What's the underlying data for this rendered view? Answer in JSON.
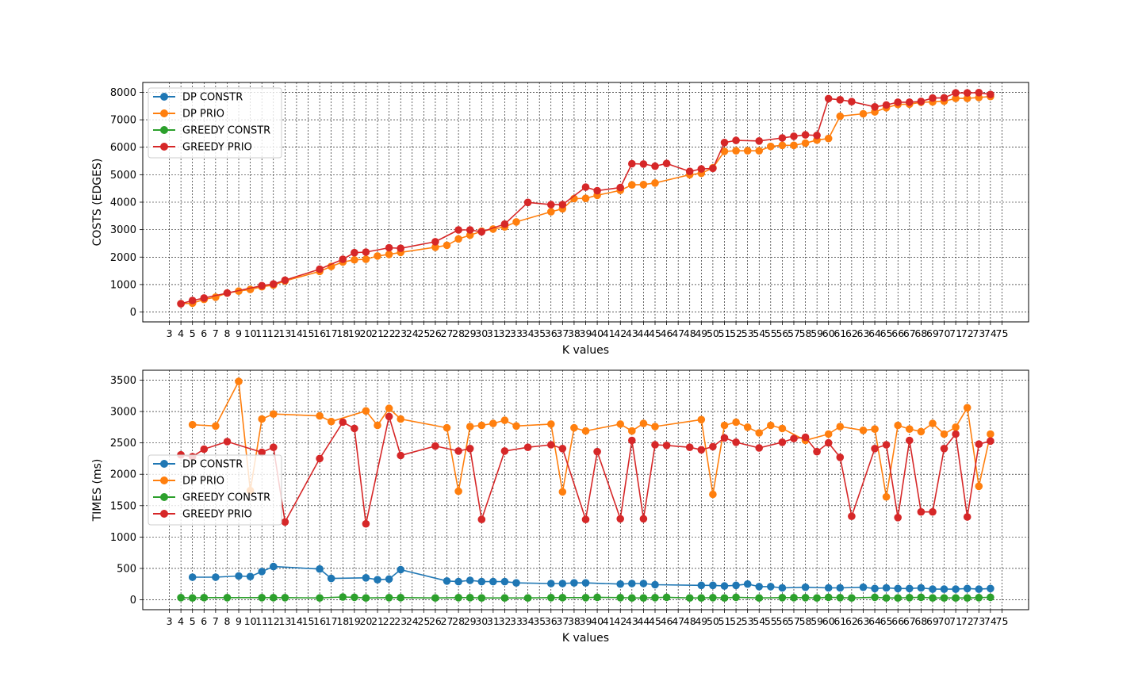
{
  "chart_data": [
    {
      "type": "line",
      "xlabel": "K values",
      "ylabel": "COSTS (EDGES)",
      "xlim": [
        3,
        75
      ],
      "ylim": [
        0,
        8000
      ],
      "grid": true,
      "legend_placement": "top-left",
      "x_ticks": [
        3,
        4,
        5,
        6,
        7,
        8,
        9,
        10,
        11,
        12,
        13,
        14,
        15,
        16,
        17,
        18,
        19,
        20,
        21,
        22,
        23,
        24,
        25,
        26,
        27,
        28,
        29,
        30,
        31,
        32,
        33,
        34,
        35,
        36,
        37,
        38,
        39,
        40,
        41,
        42,
        43,
        44,
        45,
        46,
        47,
        48,
        49,
        50,
        51,
        52,
        53,
        54,
        55,
        56,
        57,
        58,
        59,
        60,
        61,
        62,
        63,
        64,
        65,
        66,
        67,
        68,
        69,
        70,
        71,
        72,
        73,
        74,
        75
      ],
      "y_ticks": [
        0,
        1000,
        2000,
        3000,
        4000,
        5000,
        6000,
        7000,
        8000
      ],
      "series": [
        {
          "name": "DP CONSTR",
          "color": "#1f77b4",
          "x": [],
          "values": []
        },
        {
          "name": "DP PRIO",
          "color": "#ff7f0e",
          "x": [
            4,
            5,
            6,
            7,
            8,
            9,
            10,
            11,
            12,
            13,
            16,
            17,
            18,
            19,
            20,
            21,
            22,
            23,
            26,
            27,
            28,
            29,
            30,
            31,
            32,
            33,
            36,
            37,
            38,
            39,
            40,
            42,
            43,
            44,
            45,
            48,
            49,
            50,
            51,
            52,
            53,
            54,
            55,
            56,
            57,
            58,
            59,
            60,
            61,
            63,
            64,
            65,
            66,
            67,
            68,
            69,
            70,
            71,
            72,
            73,
            74
          ],
          "values": [
            300,
            320,
            460,
            540,
            690,
            760,
            820,
            920,
            980,
            1130,
            1480,
            1660,
            1820,
            1900,
            1920,
            2040,
            2100,
            2170,
            2360,
            2430,
            2660,
            2800,
            2940,
            3020,
            3100,
            3280,
            3650,
            3760,
            4130,
            4140,
            4250,
            4430,
            4630,
            4640,
            4700,
            5000,
            5050,
            5250,
            5850,
            5870,
            5870,
            5870,
            6030,
            6070,
            6070,
            6150,
            6260,
            6320,
            7130,
            7220,
            7290,
            7440,
            7560,
            7570,
            7640,
            7650,
            7680,
            7780,
            7780,
            7810,
            7850
          ]
        },
        {
          "name": "GREEDY CONSTR",
          "color": "#2ca02c",
          "x": [],
          "values": []
        },
        {
          "name": "GREEDY PRIO",
          "color": "#d62728",
          "x": [
            4,
            5,
            6,
            8,
            11,
            12,
            13,
            16,
            18,
            19,
            20,
            22,
            23,
            26,
            28,
            29,
            30,
            32,
            34,
            36,
            37,
            39,
            40,
            42,
            43,
            44,
            45,
            46,
            48,
            49,
            50,
            51,
            52,
            54,
            56,
            57,
            58,
            59,
            60,
            61,
            62,
            64,
            65,
            66,
            67,
            68,
            69,
            70,
            71,
            72,
            73,
            74
          ],
          "values": [
            300,
            420,
            510,
            690,
            960,
            1020,
            1160,
            1560,
            1920,
            2160,
            2180,
            2340,
            2320,
            2560,
            2990,
            2990,
            2920,
            3200,
            3990,
            3910,
            3910,
            4550,
            4420,
            4530,
            5400,
            5390,
            5310,
            5410,
            5120,
            5210,
            5230,
            6170,
            6250,
            6230,
            6340,
            6400,
            6450,
            6430,
            7770,
            7730,
            7660,
            7470,
            7540,
            7640,
            7640,
            7670,
            7790,
            7800,
            7980,
            7980,
            7990,
            7920
          ]
        }
      ]
    },
    {
      "type": "line",
      "xlabel": "K values",
      "ylabel": "TIMES (ms)",
      "xlim": [
        3,
        75
      ],
      "ylim": [
        0,
        3500
      ],
      "grid": true,
      "legend_placement": "center-left",
      "x_ticks": [
        3,
        4,
        5,
        6,
        7,
        8,
        9,
        10,
        11,
        12,
        13,
        14,
        15,
        16,
        17,
        18,
        19,
        20,
        21,
        22,
        23,
        24,
        25,
        26,
        27,
        28,
        29,
        30,
        31,
        32,
        33,
        34,
        35,
        36,
        37,
        38,
        39,
        40,
        41,
        42,
        43,
        44,
        45,
        46,
        47,
        48,
        49,
        50,
        51,
        52,
        53,
        54,
        55,
        56,
        57,
        58,
        59,
        60,
        61,
        62,
        63,
        64,
        65,
        66,
        67,
        68,
        69,
        70,
        71,
        72,
        73,
        74,
        75
      ],
      "y_ticks": [
        0,
        500,
        1000,
        1500,
        2000,
        2500,
        3000,
        3500
      ],
      "series": [
        {
          "name": "DP CONSTR",
          "color": "#1f77b4",
          "x": [
            5,
            7,
            9,
            10,
            11,
            12,
            16,
            17,
            20,
            21,
            22,
            23,
            27,
            28,
            29,
            30,
            31,
            32,
            33,
            36,
            37,
            38,
            39,
            42,
            43,
            44,
            45,
            49,
            50,
            51,
            52,
            53,
            54,
            55,
            56,
            58,
            60,
            61,
            63,
            64,
            65,
            66,
            67,
            68,
            69,
            70,
            71,
            72,
            73,
            74
          ],
          "values": [
            360,
            360,
            380,
            370,
            450,
            530,
            490,
            340,
            350,
            320,
            330,
            480,
            300,
            290,
            310,
            290,
            290,
            290,
            270,
            260,
            260,
            270,
            270,
            250,
            260,
            260,
            240,
            230,
            230,
            220,
            230,
            250,
            210,
            210,
            190,
            200,
            190,
            190,
            200,
            180,
            190,
            180,
            180,
            190,
            170,
            170,
            170,
            180,
            170,
            180
          ]
        },
        {
          "name": "DP PRIO",
          "color": "#ff7f0e",
          "x": [
            5,
            7,
            9,
            10,
            11,
            12,
            16,
            17,
            20,
            21,
            22,
            23,
            27,
            28,
            29,
            30,
            31,
            32,
            33,
            36,
            37,
            38,
            39,
            42,
            43,
            44,
            45,
            49,
            50,
            51,
            52,
            53,
            54,
            55,
            56,
            58,
            60,
            61,
            63,
            64,
            65,
            66,
            67,
            68,
            69,
            70,
            71,
            72,
            73,
            74
          ],
          "values": [
            2790,
            2770,
            3480,
            1740,
            2880,
            2960,
            2930,
            2840,
            3010,
            2780,
            3050,
            2880,
            2740,
            1730,
            2760,
            2780,
            2810,
            2860,
            2770,
            2800,
            1720,
            2740,
            2690,
            2800,
            2690,
            2810,
            2760,
            2870,
            1680,
            2780,
            2830,
            2750,
            2660,
            2780,
            2730,
            2540,
            2640,
            2760,
            2700,
            2720,
            1640,
            2780,
            2720,
            2680,
            2810,
            2640,
            2750,
            3060,
            1810,
            2640
          ]
        },
        {
          "name": "GREEDY CONSTR",
          "color": "#2ca02c",
          "x": [
            4,
            5,
            6,
            8,
            11,
            12,
            13,
            16,
            18,
            19,
            20,
            22,
            23,
            26,
            28,
            29,
            30,
            32,
            34,
            36,
            37,
            39,
            40,
            42,
            43,
            44,
            45,
            46,
            48,
            49,
            50,
            51,
            52,
            54,
            56,
            57,
            58,
            59,
            60,
            61,
            62,
            64,
            65,
            66,
            67,
            68,
            69,
            70,
            71,
            72,
            73,
            74
          ],
          "values": [
            35,
            30,
            35,
            35,
            35,
            35,
            35,
            30,
            45,
            40,
            30,
            35,
            35,
            30,
            35,
            35,
            30,
            30,
            30,
            35,
            35,
            35,
            40,
            35,
            30,
            30,
            35,
            40,
            30,
            30,
            35,
            30,
            40,
            30,
            35,
            35,
            35,
            30,
            40,
            35,
            30,
            40,
            30,
            30,
            35,
            40,
            30,
            30,
            30,
            30,
            35,
            40
          ]
        },
        {
          "name": "GREEDY PRIO",
          "color": "#d62728",
          "x": [
            4,
            5,
            6,
            8,
            11,
            12,
            13,
            16,
            18,
            19,
            20,
            22,
            23,
            26,
            28,
            29,
            30,
            32,
            34,
            36,
            37,
            39,
            40,
            42,
            43,
            44,
            45,
            46,
            48,
            49,
            50,
            51,
            52,
            54,
            56,
            57,
            58,
            59,
            60,
            61,
            62,
            64,
            65,
            66,
            67,
            68,
            69,
            70,
            71,
            72,
            73,
            74
          ],
          "values": [
            2310,
            2280,
            2400,
            2520,
            2350,
            2430,
            1240,
            2250,
            2830,
            2730,
            1210,
            2920,
            2300,
            2450,
            2370,
            2410,
            1280,
            2370,
            2430,
            2470,
            2410,
            1280,
            2360,
            1290,
            2540,
            1290,
            2470,
            2460,
            2430,
            2390,
            2440,
            2580,
            2510,
            2420,
            2510,
            2570,
            2590,
            2360,
            2500,
            2270,
            1330,
            2410,
            2470,
            1310,
            2540,
            1400,
            1400,
            2410,
            2640,
            1320,
            2480,
            2530
          ]
        }
      ]
    }
  ]
}
